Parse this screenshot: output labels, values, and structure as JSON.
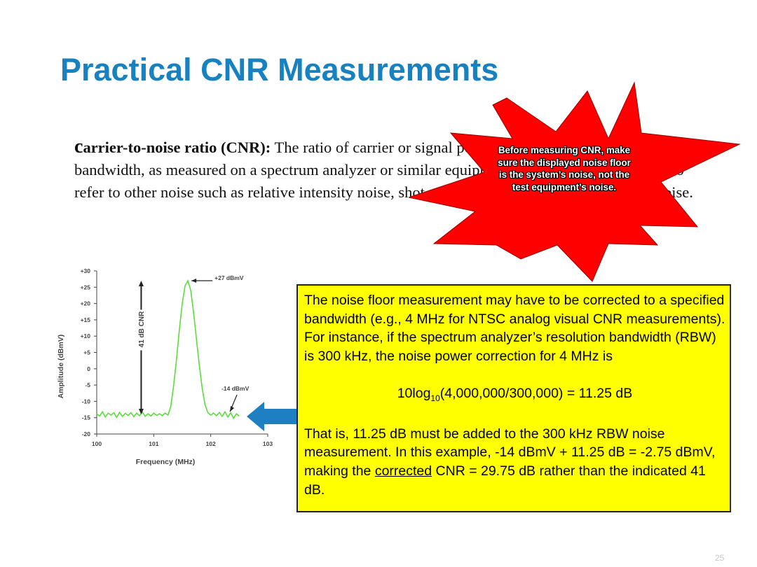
{
  "slide": {
    "title": "Practical CNR Measurements",
    "definition": {
      "term_first_letter": "c",
      "term_rest": "arrier-to-noise ratio (CNR):",
      "body": "The ratio of carrier or signal power to noise power in a specified bandwidth, as measured on a spectrum analyzer or similar equipment. Note that “noise” can also refer to other noise such as relative intensity noise, shot noise, etc., but does include ingress noise."
    },
    "callout_star": {
      "text": "Before measuring CNR, make sure the displayed noise floor is the system’s noise, not the test equipment’s noise.",
      "color": "#ff0000"
    },
    "note_box": {
      "paragraph1": "The noise floor measurement may have to be corrected to a specified bandwidth (e.g., 4 MHz for NTSC analog visual CNR measurements). For instance, if the spectrum analyzer’s resolution bandwidth (RBW) is 300 kHz, the noise power correction for 4 MHz is",
      "formula_prefix": "10log",
      "formula_sub": "10",
      "formula_rest": "(4,000,000/300,000) = 11.25 dB",
      "paragraph2_start": "That is, 11.25 dB must be added to the 300 kHz RBW noise measurement. In this example, -14 dBmV + 11.25 dB = -2.75 dBmV, making the ",
      "paragraph2_underlined": "corrected",
      "paragraph2_end": " CNR = 29.75 dB rather than the indicated 41 dB.",
      "background": "#ffff00"
    },
    "pointer_arrow_color": "#1f7fc3",
    "page_number": "25"
  },
  "chart_data": {
    "type": "line",
    "xlabel": "Frequency (MHz)",
    "ylabel": "Amplitude (dBmV)",
    "xlim": [
      100,
      103
    ],
    "ylim": [
      -20,
      30
    ],
    "x_ticks": [
      "100",
      "101",
      "102",
      "103"
    ],
    "y_ticks": [
      "+30",
      "+25",
      "+20",
      "+15",
      "+10",
      "+5",
      "0",
      "-5",
      "-10",
      "-15",
      "-20"
    ],
    "grid": false,
    "series": [
      {
        "color": "#5cdc3c",
        "x": [
          100.0,
          100.05,
          100.1,
          100.15,
          100.2,
          100.25,
          100.3,
          100.35,
          100.4,
          100.45,
          100.5,
          100.55,
          100.6,
          100.65,
          100.7,
          100.75,
          100.8,
          100.85,
          100.9,
          100.95,
          101.0,
          101.05,
          101.1,
          101.15,
          101.2,
          101.25,
          101.3,
          101.35,
          101.4,
          101.45,
          101.5,
          101.55,
          101.6,
          101.65,
          101.7,
          101.75,
          101.8,
          101.85,
          101.9,
          101.95,
          102.0,
          102.05,
          102.1,
          102.15,
          102.2,
          102.25,
          102.3,
          102.35,
          102.4,
          102.45,
          102.5
        ],
        "y": [
          -13.8,
          -14.5,
          -13.2,
          -14.8,
          -13.6,
          -14.2,
          -13.5,
          -14.9,
          -13.4,
          -14.6,
          -13.7,
          -14.3,
          -13.5,
          -14.7,
          -13.6,
          -14.4,
          -13.3,
          -14.6,
          -13.8,
          -14.5,
          -13.6,
          -14.3,
          -13.8,
          -14.4,
          -13.6,
          -14.2,
          -11.5,
          -5,
          3,
          12,
          20,
          25.5,
          27,
          24,
          17,
          9,
          1,
          -6,
          -11,
          -13.5,
          -14.2,
          -13.6,
          -14.4,
          -13.4,
          -14.6,
          -13.2,
          -14.8,
          -13.5,
          -15.2,
          -13.8,
          -14.5
        ]
      }
    ],
    "annotations": [
      {
        "text": "+27 dBmV",
        "x": 101.6,
        "y": 27
      },
      {
        "text": "-14 dBmV",
        "x": 102.3,
        "y": -14
      },
      {
        "text": "41 dB CNR",
        "from_y": -14,
        "to_y": 27
      }
    ]
  }
}
